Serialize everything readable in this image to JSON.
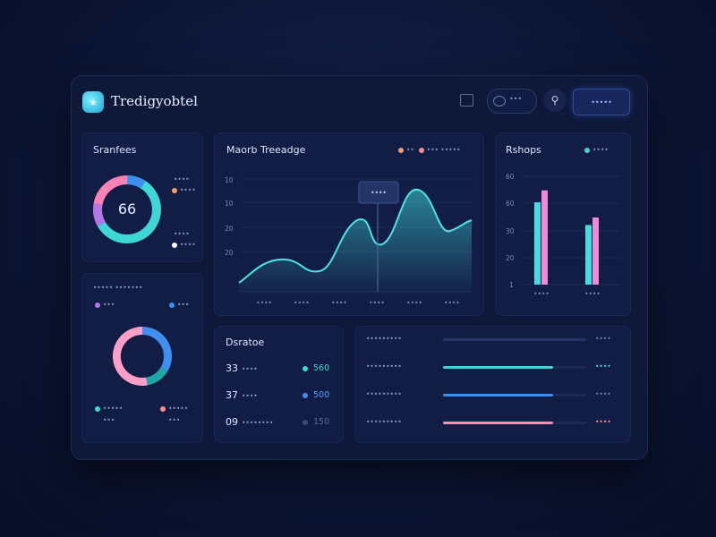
{
  "app": {
    "title": "Tredigyobtel"
  },
  "topbar": {
    "search_label": "•••",
    "button_label": "•••••"
  },
  "colors": {
    "cyan": "#3fd6d6",
    "blue": "#3f8ff0",
    "pink": "#ff82b4",
    "salmon": "#ff8f8f",
    "purple": "#b477e8"
  },
  "stats_card": {
    "title": "Sranfees",
    "center_value": "66",
    "items": [
      {
        "label": "••••",
        "value": "••••",
        "color": "#ff9a66"
      },
      {
        "label": "••••",
        "value": "••••",
        "color": "#ffffff"
      }
    ]
  },
  "trend_card": {
    "title": "Maorb Treeadge",
    "legend": [
      {
        "label": "••",
        "color": "#ff9a66"
      },
      {
        "label": "•••  •••••",
        "color": "#ff8f8f"
      }
    ],
    "tooltip": "••••",
    "y_ticks": [
      "10",
      "10",
      "20",
      "20"
    ],
    "x_ticks": [
      "••••",
      "••••",
      "••••",
      "••••",
      "••••",
      "••••"
    ]
  },
  "bars_card": {
    "title": "Rshops",
    "legend_label": "••••",
    "y_ticks": [
      "60",
      "60",
      "30",
      "20",
      "1"
    ],
    "x_ticks": [
      "••••",
      "••••"
    ],
    "groups": [
      {
        "cyan": 0.76,
        "pink": 0.87
      },
      {
        "cyan": 0.55,
        "pink": 0.62
      }
    ]
  },
  "pie_card": {
    "title": "••••• •••••••",
    "top_legend": [
      {
        "label": "•••",
        "color": "#b477e8"
      },
      {
        "label": "•••",
        "color": "#3f8ff0"
      }
    ],
    "bottom_legend": [
      {
        "label": "•••••",
        "value": "•••",
        "color": "#3fd6d6"
      },
      {
        "label": "•••••",
        "value": "•••",
        "color": "#ff8f8f"
      }
    ]
  },
  "devices_card": {
    "title": "Dsratoe",
    "rows": [
      {
        "num": "33",
        "label": "••••",
        "value": "560",
        "color": "#3fd6d6"
      },
      {
        "num": "37",
        "label": "••••",
        "value": "500",
        "color": "#3f8ff0"
      },
      {
        "num": "09",
        "label": "••••••••",
        "value": "150",
        "color": "#3a4a78"
      }
    ]
  },
  "progress_card": {
    "rows": [
      {
        "label": "•••••••••",
        "value": "••••",
        "progress": 0.0,
        "color": "#2a3766",
        "value_color": "#6f7da8"
      },
      {
        "label": "•••••••••",
        "value": "••••",
        "progress": 0.77,
        "color": "#3fd6d6",
        "value_color": "#3fd6d6"
      },
      {
        "label": "•••••••••",
        "value": "••••",
        "progress": 0.77,
        "color": "#3f8ff0",
        "value_color": "#6f7da8"
      },
      {
        "label": "•••••••••",
        "value": "••••",
        "progress": 0.77,
        "color": "#ff8fa8",
        "value_color": "#ff8f8f"
      }
    ]
  }
}
